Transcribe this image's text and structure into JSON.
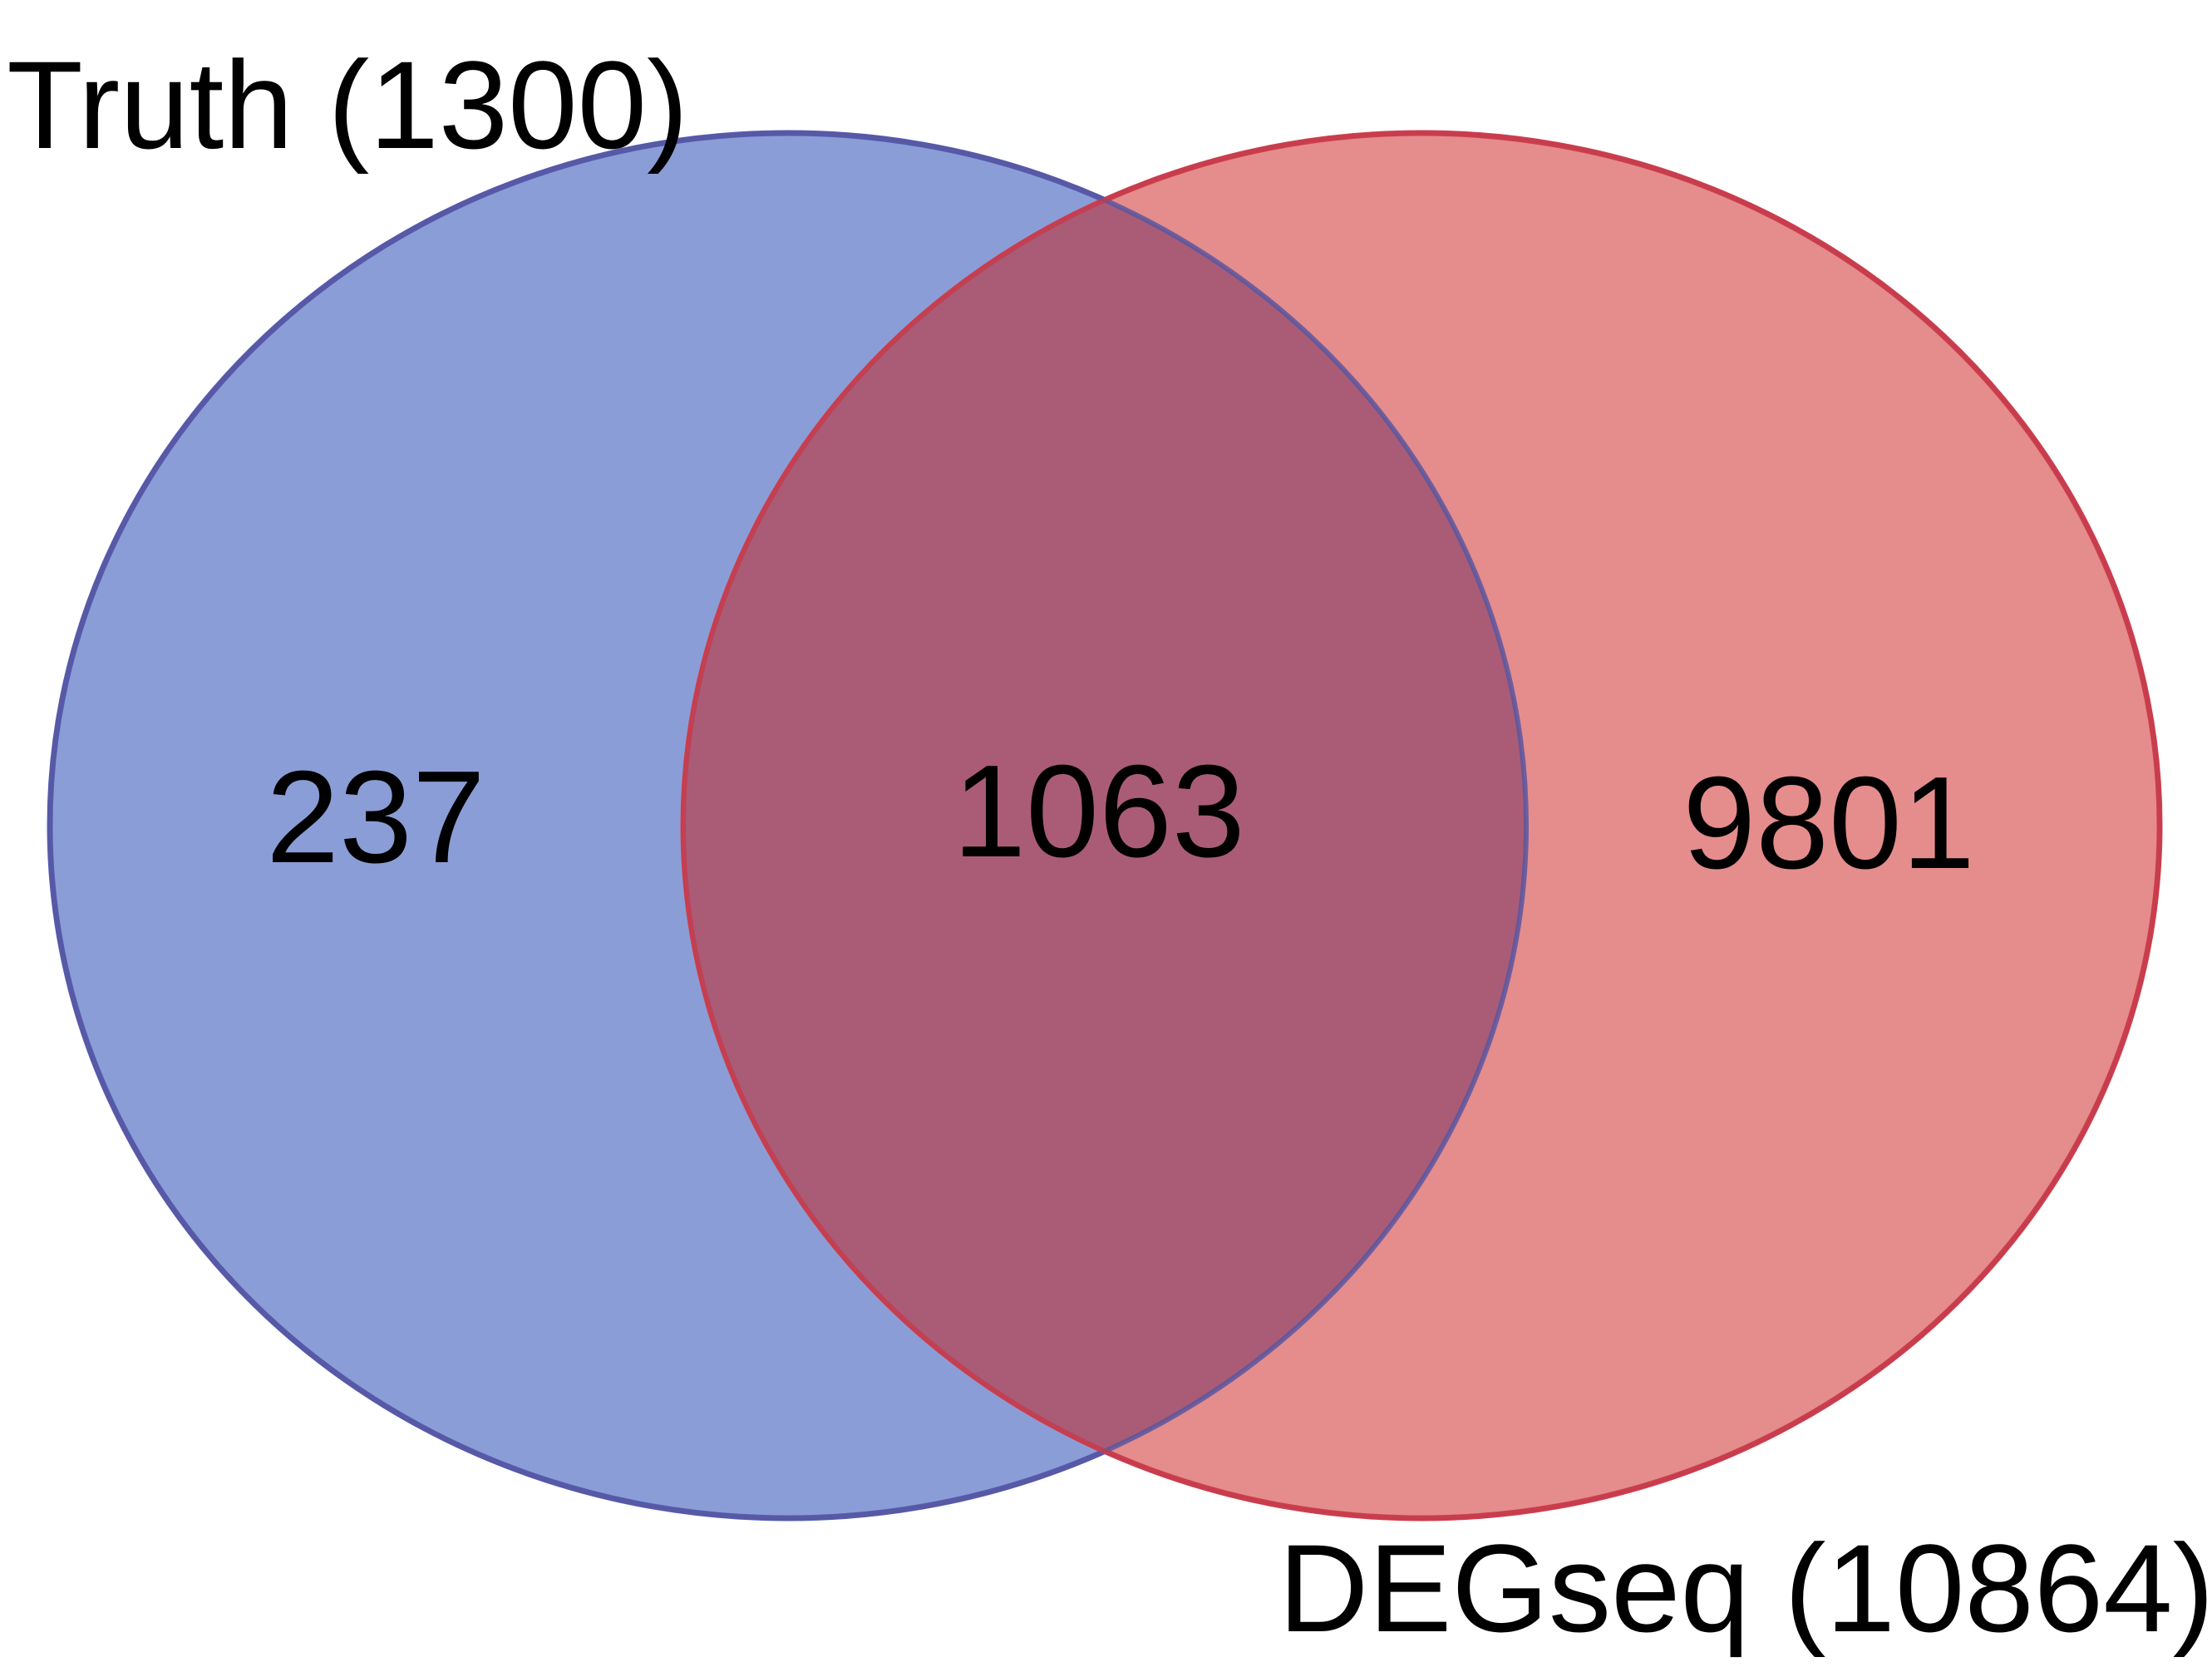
{
  "venn": {
    "sets": [
      {
        "label": "Truth (1300)",
        "color": "#5b74c8"
      },
      {
        "label": "DEGseq (10864)",
        "color": "#db5b5e"
      }
    ],
    "regions": {
      "left_only": "237",
      "intersection": "1063",
      "right_only": "9801"
    },
    "colors": {
      "left_fill": "#8b9dd6",
      "left_stroke": "#4e66c2",
      "right_fill": "#e58c8c",
      "right_stroke": "#d4474f",
      "overlap_fill": "#aa5c76",
      "background": "#ffffff"
    }
  }
}
